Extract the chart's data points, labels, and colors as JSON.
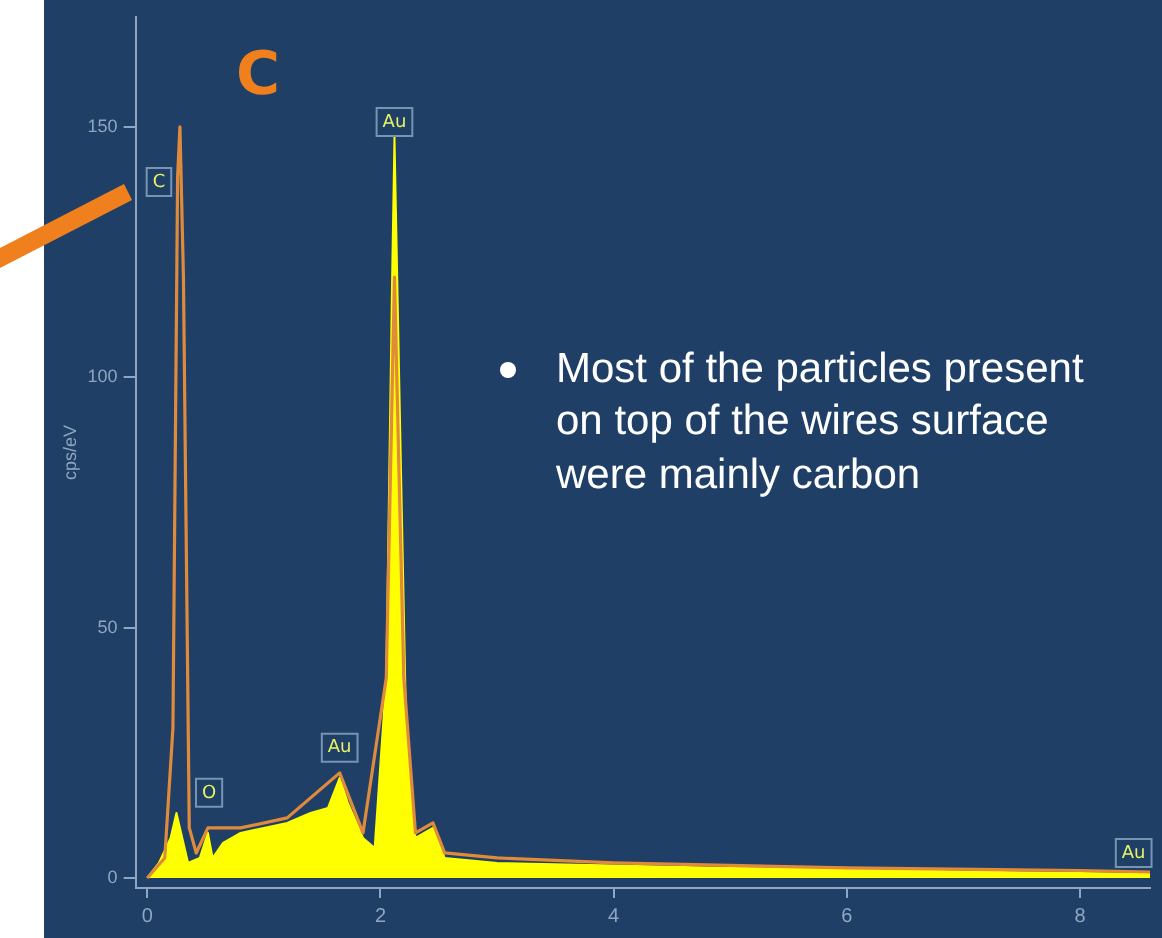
{
  "chart_data": {
    "type": "area",
    "ylabel": "cps/eV",
    "xlim": [
      -0.1,
      8.6
    ],
    "ylim": [
      -2,
      172
    ],
    "xticks": [
      0,
      2,
      4,
      6,
      8
    ],
    "yticks": [
      0,
      50,
      100,
      150
    ],
    "grid": false,
    "legend": false,
    "marker": "none",
    "series": [
      {
        "type": "area",
        "color": "#ffff00",
        "x": [
          0,
          0.1,
          0.2,
          0.25,
          0.28,
          0.35,
          0.45,
          0.52,
          0.56,
          0.65,
          0.8,
          1.0,
          1.2,
          1.4,
          1.55,
          1.65,
          1.72,
          1.85,
          1.95,
          2.05,
          2.1,
          2.12,
          2.16,
          2.22,
          2.3,
          2.45,
          2.55,
          3,
          4,
          5,
          6,
          7,
          8,
          8.6
        ],
        "values": [
          0,
          3,
          8,
          13,
          10,
          3,
          4,
          9,
          4,
          7,
          9,
          10,
          11,
          13,
          14,
          20,
          15,
          8,
          6,
          40,
          120,
          148,
          100,
          30,
          8,
          10,
          4,
          3,
          2.5,
          2,
          1.8,
          1.3,
          1,
          0.8
        ]
      },
      {
        "type": "line",
        "color": "#e08a3c",
        "x": [
          0,
          0.15,
          0.22,
          0.26,
          0.28,
          0.31,
          0.36,
          0.42,
          0.52,
          0.8,
          1.2,
          1.65,
          1.85,
          2.05,
          2.12,
          2.2,
          2.3,
          2.45,
          2.55,
          3,
          4,
          6,
          8,
          8.6
        ],
        "values": [
          0,
          4,
          30,
          140,
          150,
          120,
          10,
          5,
          10,
          10,
          12,
          21,
          9,
          40,
          120,
          40,
          9,
          11,
          5,
          4,
          3,
          2,
          1.5,
          1.2
        ]
      }
    ],
    "annotations": [
      "C",
      "Most of the particles present on top of the wires surface were mainly carbon",
      {
        "text": "C",
        "x": 0.1,
        "y": 139
      },
      {
        "text": "Au",
        "x": 2.12,
        "y": 151
      },
      {
        "text": "O",
        "x": 0.53,
        "y": 17
      },
      {
        "text": "Au",
        "x": 1.65,
        "y": 26
      },
      {
        "text": "Au",
        "x": 8.46,
        "y": 5
      }
    ]
  }
}
